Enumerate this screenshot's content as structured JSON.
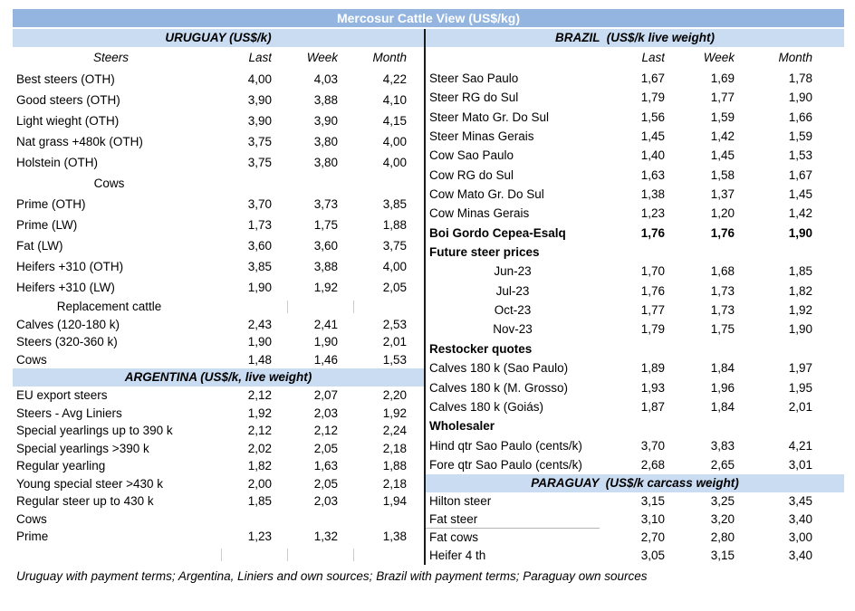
{
  "title": "Mercosur Cattle View (US$/kg)",
  "footnote": "Uruguay with payment terms; Argentina, Liniers and own sources; Brazil with payment terms; Paraguay own sources",
  "colors": {
    "title_bar": "#93b5df",
    "section_band": "#c9dcf2",
    "divider": "#1a1a1a",
    "title_text": "#ffffff"
  },
  "columns": [
    "Last",
    "Week",
    "Month"
  ],
  "left_sections": [
    {
      "header": "URUGUAY (US$/k)",
      "col_label": "Steers",
      "rows": [
        {
          "label": "Best steers (OTH)",
          "last": "4,00",
          "week": "4,03",
          "month": "4,22"
        },
        {
          "label": "Good steers (OTH)",
          "last": "3,90",
          "week": "3,88",
          "month": "4,10"
        },
        {
          "label": "Light wieght (OTH)",
          "last": "3,90",
          "week": "3,90",
          "month": "4,15"
        },
        {
          "label": "Nat grass +480k (OTH)",
          "last": "3,75",
          "week": "3,80",
          "month": "4,00"
        },
        {
          "label": "Holstein (OTH)",
          "last": "3,75",
          "week": "3,80",
          "month": "4,00"
        },
        {
          "label": "Cows",
          "center": true
        },
        {
          "label": "Prime (OTH)",
          "last": "3,70",
          "week": "3,73",
          "month": "3,85"
        },
        {
          "label": "Prime (LW)",
          "last": "1,73",
          "week": "1,75",
          "month": "1,88"
        },
        {
          "label": "Fat (LW)",
          "last": "3,60",
          "week": "3,60",
          "month": "3,75"
        },
        {
          "label": "Heifers +310 (OTH)",
          "last": "3,85",
          "week": "3,88",
          "month": "4,00"
        },
        {
          "label": "Heifers +310 (LW)",
          "last": "1,90",
          "week": "1,92",
          "month": "2,05"
        },
        {
          "label": "Replacement cattle",
          "center": true,
          "ticks": [
            "week",
            "month"
          ]
        },
        {
          "label": "Calves (120-180 k)",
          "last": "2,43",
          "week": "2,41",
          "month": "2,53"
        },
        {
          "label": "Steers (320-360 k)",
          "last": "1,90",
          "week": "1,90",
          "month": "2,01"
        },
        {
          "label": "Cows",
          "last": "1,48",
          "week": "1,46",
          "month": "1,53"
        }
      ]
    },
    {
      "header": "ARGENTINA (US$/k, live weight)",
      "rows": [
        {
          "label": "EU export steers",
          "last": "2,12",
          "week": "2,07",
          "month": "2,20"
        },
        {
          "label": "Steers - Avg Liniers",
          "last": "1,92",
          "week": "2,03",
          "month": "1,92"
        },
        {
          "label": "Special yearlings up to 390 k",
          "last": "2,12",
          "week": "2,12",
          "month": "2,24"
        },
        {
          "label": "Special yearlings >390 k",
          "last": "2,02",
          "week": "2,05",
          "month": "2,18"
        },
        {
          "label": "Regular yearling",
          "last": "1,82",
          "week": "1,63",
          "month": "1,88"
        },
        {
          "label": "Young special steer >430 k",
          "last": "2,00",
          "week": "2,05",
          "month": "2,18"
        },
        {
          "label": "Regular steer up to 430 k",
          "last": "1,85",
          "week": "2,03",
          "month": "1,94"
        },
        {
          "label": "Cows"
        },
        {
          "label": "Prime",
          "last": "1,23",
          "week": "1,32",
          "month": "1,38"
        },
        {
          "label": "",
          "ticks": [
            "last",
            "week",
            "month"
          ]
        }
      ]
    }
  ],
  "right_sections": [
    {
      "header": "BRAZIL  (US$/k live weight)",
      "col_label": "",
      "rows": [
        {
          "label": "Steer Sao Paulo",
          "last": "1,67",
          "week": "1,69",
          "month": "1,78"
        },
        {
          "label": "Steer RG do Sul",
          "last": "1,79",
          "week": "1,77",
          "month": "1,90"
        },
        {
          "label": "Steer Mato Gr. Do Sul",
          "last": "1,56",
          "week": "1,59",
          "month": "1,66"
        },
        {
          "label": "Steer Minas Gerais",
          "last": "1,45",
          "week": "1,42",
          "month": "1,59"
        },
        {
          "label": "Cow Sao Paulo",
          "last": "1,40",
          "week": "1,45",
          "month": "1,53"
        },
        {
          "label": "Cow RG do Sul",
          "last": "1,63",
          "week": "1,58",
          "month": "1,67"
        },
        {
          "label": "Cow Mato Gr. Do Sul",
          "last": "1,38",
          "week": "1,37",
          "month": "1,45"
        },
        {
          "label": "Cow Minas Gerais",
          "last": "1,23",
          "week": "1,20",
          "month": "1,42"
        },
        {
          "label": "Boi Gordo Cepea-Esalq",
          "last": "1,76",
          "week": "1,76",
          "month": "1,90",
          "bold": true
        },
        {
          "label": "Future steer prices",
          "bold": true
        },
        {
          "label": "Jun-23",
          "last": "1,70",
          "week": "1,68",
          "month": "1,85",
          "center": true
        },
        {
          "label": "Jul-23",
          "last": "1,76",
          "week": "1,73",
          "month": "1,82",
          "center": true
        },
        {
          "label": "Oct-23",
          "last": "1,77",
          "week": "1,73",
          "month": "1,92",
          "center": true
        },
        {
          "label": "Nov-23",
          "last": "1,79",
          "week": "1,75",
          "month": "1,90",
          "center": true
        },
        {
          "label": "Restocker quotes",
          "bold": true
        },
        {
          "label": "Calves 180 k (Sao Paulo)",
          "last": "1,89",
          "week": "1,84",
          "month": "1,97"
        },
        {
          "label": "Calves 180 k (M. Grosso)",
          "last": "1,93",
          "week": "1,96",
          "month": "1,95"
        },
        {
          "label": "Calves 180 k (Goiás)",
          "last": "1,87",
          "week": "1,84",
          "month": "2,01"
        },
        {
          "label": "Wholesaler",
          "bold": true
        },
        {
          "label": "Hind qtr Sao Paulo (cents/k)",
          "last": "3,70",
          "week": "3,83",
          "month": "4,21"
        },
        {
          "label": "Fore qtr Sao Paulo (cents/k)",
          "last": "2,68",
          "week": "2,65",
          "month": "3,01"
        }
      ]
    },
    {
      "header": "PARAGUAY  (US$/k carcass weight)",
      "rows": [
        {
          "label": "Hilton steer",
          "last": "3,15",
          "week": "3,25",
          "month": "3,45"
        },
        {
          "label": "Fat steer",
          "last": "3,10",
          "week": "3,20",
          "month": "3,40",
          "underline": true
        },
        {
          "label": "Fat cows",
          "last": "2,70",
          "week": "2,80",
          "month": "3,00"
        },
        {
          "label": "Heifer 4 th",
          "last": "3,05",
          "week": "3,15",
          "month": "3,40"
        }
      ]
    }
  ]
}
